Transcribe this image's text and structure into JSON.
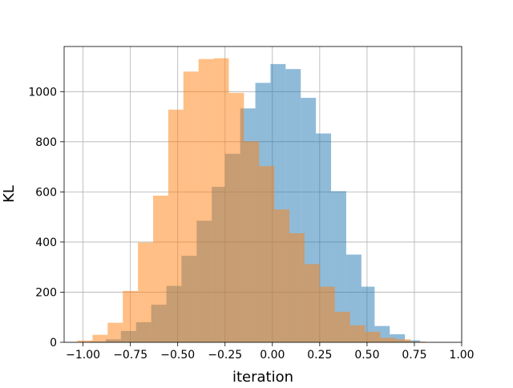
{
  "chart_data": {
    "type": "bar",
    "title": "",
    "xlabel": "iteration",
    "ylabel": "KL",
    "xlim": [
      -1.1,
      1.0
    ],
    "ylim": [
      0,
      1180
    ],
    "grid": true,
    "legend": "none",
    "x_ticks": [
      -1.0,
      -0.75,
      -0.5,
      -0.25,
      0.0,
      0.25,
      0.5,
      0.75,
      1.0
    ],
    "x_tick_labels": [
      "−1.00",
      "−0.75",
      "−0.50",
      "−0.25",
      "0.00",
      "0.25",
      "0.50",
      "0.75",
      "1.00"
    ],
    "y_ticks": [
      0,
      200,
      400,
      600,
      800,
      1000
    ],
    "y_tick_labels": [
      "0",
      "200",
      "400",
      "600",
      "800",
      "1000"
    ],
    "bar_opacity": 0.5,
    "series": [
      {
        "color": "#1f77b4",
        "bins": [
          [
            -0.96,
            -0.88,
            3
          ],
          [
            -0.88,
            -0.8,
            12
          ],
          [
            -0.8,
            -0.72,
            45
          ],
          [
            -0.72,
            -0.64,
            80
          ],
          [
            -0.64,
            -0.56,
            150
          ],
          [
            -0.56,
            -0.48,
            225
          ],
          [
            -0.48,
            -0.4,
            345
          ],
          [
            -0.4,
            -0.32,
            485
          ],
          [
            -0.32,
            -0.25,
            620
          ],
          [
            -0.25,
            -0.17,
            752
          ],
          [
            -0.17,
            -0.09,
            933
          ],
          [
            -0.09,
            -0.01,
            1035
          ],
          [
            -0.01,
            0.07,
            1110
          ],
          [
            0.07,
            0.15,
            1090
          ],
          [
            0.15,
            0.23,
            975
          ],
          [
            0.23,
            0.31,
            833
          ],
          [
            0.31,
            0.39,
            603
          ],
          [
            0.39,
            0.47,
            350
          ],
          [
            0.47,
            0.54,
            222
          ],
          [
            0.54,
            0.62,
            65
          ],
          [
            0.62,
            0.7,
            32
          ],
          [
            0.7,
            0.78,
            8
          ]
        ]
      },
      {
        "color": "#ff7f0e",
        "bins": [
          [
            -1.03,
            -0.95,
            7
          ],
          [
            -0.95,
            -0.87,
            30
          ],
          [
            -0.87,
            -0.79,
            78
          ],
          [
            -0.79,
            -0.71,
            205
          ],
          [
            -0.71,
            -0.63,
            398
          ],
          [
            -0.63,
            -0.55,
            585
          ],
          [
            -0.55,
            -0.47,
            928
          ],
          [
            -0.47,
            -0.39,
            1080
          ],
          [
            -0.39,
            -0.31,
            1130
          ],
          [
            -0.31,
            -0.23,
            1133
          ],
          [
            -0.23,
            -0.15,
            995
          ],
          [
            -0.15,
            -0.07,
            802
          ],
          [
            -0.07,
            0.01,
            703
          ],
          [
            0.01,
            0.09,
            530
          ],
          [
            0.09,
            0.17,
            435
          ],
          [
            0.17,
            0.25,
            312
          ],
          [
            0.25,
            0.33,
            222
          ],
          [
            0.33,
            0.41,
            122
          ],
          [
            0.41,
            0.49,
            68
          ],
          [
            0.49,
            0.57,
            42
          ],
          [
            0.57,
            0.65,
            18
          ],
          [
            0.65,
            0.73,
            12
          ],
          [
            0.73,
            0.81,
            3
          ]
        ]
      }
    ]
  }
}
